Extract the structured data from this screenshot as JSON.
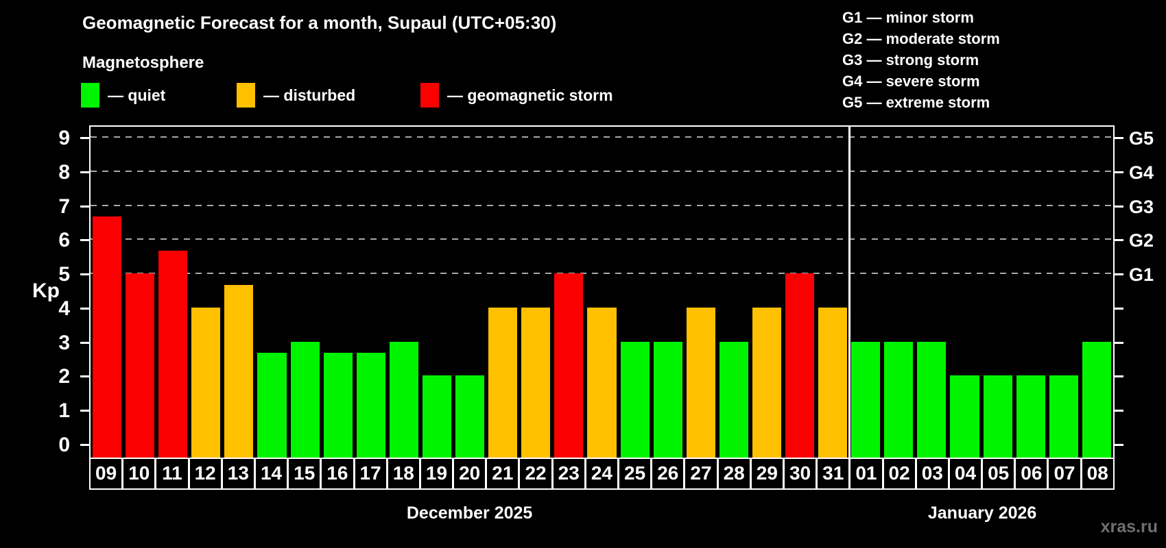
{
  "title": "Geomagnetic Forecast for a month, Supaul (UTC+05:30)",
  "subtitle": "Magnetosphere",
  "legend": {
    "items": [
      {
        "key": "quiet",
        "label": "— quiet",
        "color": "#00f400"
      },
      {
        "key": "disturbed",
        "label": "— disturbed",
        "color": "#ffc000"
      },
      {
        "key": "storm",
        "label": "— geomagnetic storm",
        "color": "#fb0000"
      }
    ]
  },
  "g_scale_legend": {
    "items": [
      "G1 — minor storm",
      "G2 — moderate storm",
      "G3 — strong storm",
      "G4 — severe storm",
      "G5 — extreme storm"
    ]
  },
  "watermark": "xras.ru",
  "chart_data": {
    "type": "bar",
    "title": "Geomagnetic Forecast for a month, Supaul (UTC+05:30)",
    "ylabel": "Kp",
    "xlabel": "",
    "ylim": [
      0,
      9
    ],
    "y_ticks": [
      0,
      1,
      2,
      3,
      4,
      5,
      6,
      7,
      8,
      9
    ],
    "gridline_kp": [
      5,
      6,
      7,
      8,
      9
    ],
    "grid": "dashed horizontal lines at Kp 5-9 only",
    "legend_position": "top",
    "right_axis_labels": [
      {
        "label": "G1",
        "kp": 5
      },
      {
        "label": "G2",
        "kp": 6
      },
      {
        "label": "G3",
        "kp": 7
      },
      {
        "label": "G4",
        "kp": 8
      },
      {
        "label": "G5",
        "kp": 9
      }
    ],
    "thresholds": {
      "disturbed_min_kp": 4,
      "storm_min_kp": 5
    },
    "colors": {
      "quiet": "#00f400",
      "disturbed": "#ffc000",
      "storm": "#fb0000"
    },
    "groups": [
      {
        "label": "December 2025",
        "days": [
          "09",
          "10",
          "11",
          "12",
          "13",
          "14",
          "15",
          "16",
          "17",
          "18",
          "19",
          "20",
          "21",
          "22",
          "23",
          "24",
          "25",
          "26",
          "27",
          "28",
          "29",
          "30",
          "31"
        ],
        "kp": [
          6.67,
          5,
          5.67,
          4,
          4.67,
          2.67,
          3,
          2.67,
          2.67,
          3,
          2,
          2,
          4,
          4,
          5,
          4,
          3,
          3,
          4,
          3,
          4,
          5,
          4
        ]
      },
      {
        "label": "January 2026",
        "days": [
          "01",
          "02",
          "03",
          "04",
          "05",
          "06",
          "07",
          "08"
        ],
        "kp": [
          3,
          3,
          3,
          2,
          2,
          2,
          2,
          3
        ]
      }
    ]
  }
}
